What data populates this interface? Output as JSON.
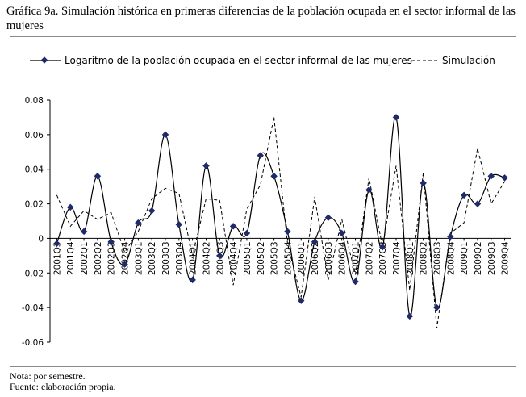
{
  "title": "Gráfica 9a. Simulación histórica en primeras diferencias de la población ocupada en el sector informal de las mujeres",
  "note": "Nota: por semestre.",
  "source": "Fuente: elaboración propia.",
  "chart_data": {
    "type": "line",
    "title": "",
    "xlabel": "",
    "ylabel": "",
    "ylim": [
      -0.06,
      0.08
    ],
    "yticks": [
      0.08,
      0.06,
      0.04,
      0.02,
      0,
      -0.02,
      -0.04,
      -0.06
    ],
    "ytick_labels": [
      "0.08",
      "0.06",
      "0.04",
      "0.02",
      "0",
      "-0.02",
      "-0.04",
      "-0.06"
    ],
    "grid": false,
    "legend_position": "top",
    "categories": [
      "2001Q3",
      "2001Q4",
      "2002Q1",
      "2002Q2",
      "2002Q3",
      "2002Q4",
      "2003Q1",
      "2003Q2",
      "2003Q3",
      "2003Q4",
      "2004Q1",
      "2004Q2",
      "2004Q3",
      "2004Q4",
      "2005Q1",
      "2005Q2",
      "2005Q3",
      "2005Q4",
      "2006Q1",
      "2006Q2",
      "2006Q3",
      "2006Q4",
      "2007Q1",
      "2007Q2",
      "2007Q3",
      "2007Q4",
      "2008Q1",
      "2008Q2",
      "2008Q3",
      "2008Q4",
      "2009Q1",
      "2009Q2",
      "2009Q3",
      "2009Q4"
    ],
    "series": [
      {
        "name": "Logaritmo de la población ocupada en el sector informal de las mujeres",
        "style": "solid-marker",
        "color": "#000000",
        "marker_color": "#1f2a6b",
        "values": [
          -0.003,
          0.018,
          0.004,
          0.036,
          -0.002,
          -0.015,
          0.009,
          0.016,
          0.06,
          0.008,
          -0.024,
          0.042,
          -0.01,
          0.007,
          0.003,
          0.048,
          0.036,
          0.004,
          -0.036,
          -0.002,
          0.012,
          0.003,
          -0.025,
          0.028,
          -0.005,
          0.07,
          -0.045,
          0.032,
          -0.04,
          0.001,
          0.025,
          0.02,
          0.036,
          0.035
        ]
      },
      {
        "name": "Simulación",
        "style": "dashed",
        "color": "#000000",
        "values": [
          0.025,
          0.007,
          0.016,
          0.011,
          0.015,
          -0.008,
          0.004,
          0.023,
          0.029,
          0.026,
          -0.01,
          0.023,
          0.022,
          -0.027,
          0.017,
          0.031,
          0.07,
          -0.003,
          -0.034,
          0.024,
          -0.024,
          0.011,
          -0.021,
          0.035,
          -0.005,
          0.042,
          -0.03,
          0.038,
          -0.052,
          0.003,
          0.009,
          0.052,
          0.02,
          0.033
        ]
      }
    ]
  }
}
